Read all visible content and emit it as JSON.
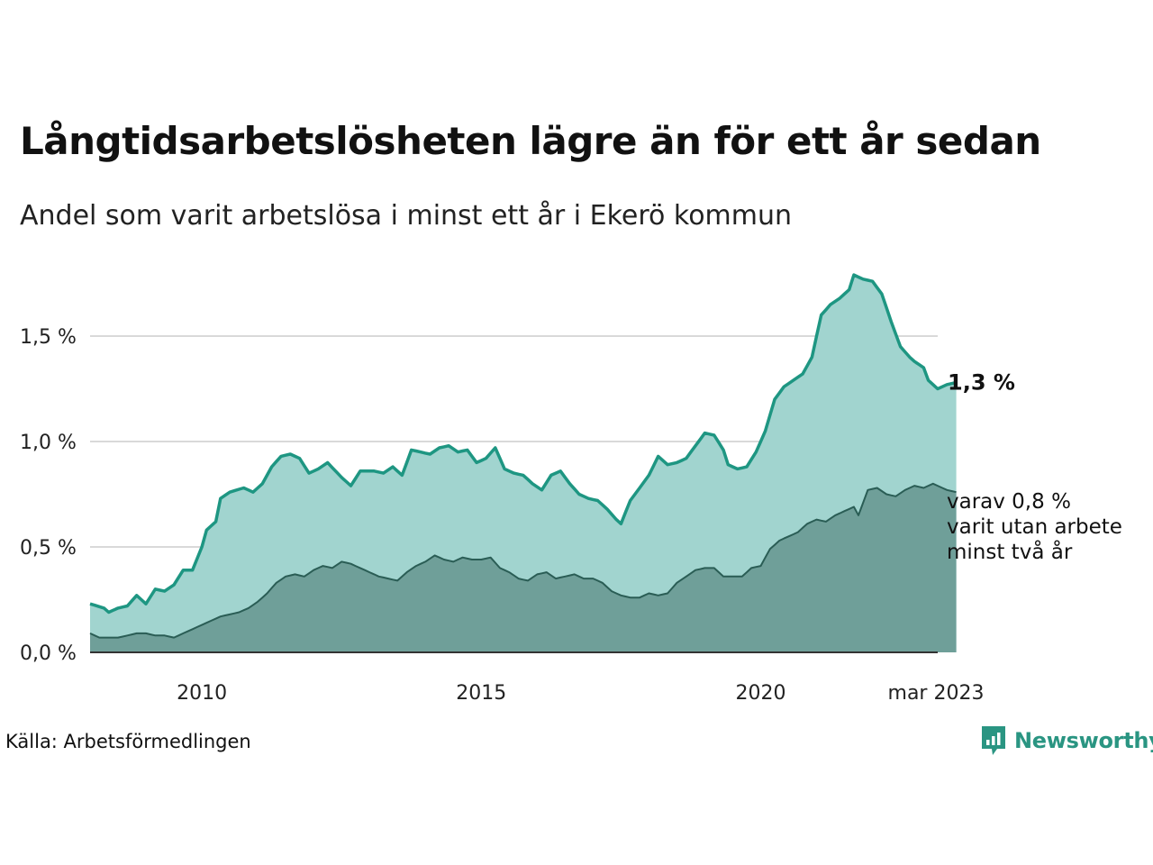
{
  "title": "Långtidsarbetslösheten lägre än för ett år sedan",
  "subtitle": "Andel som varit arbetslösa i minst ett år i Ekerö kommun",
  "source": "Källa: Arbetsförmedlingen",
  "brand": {
    "name": "Newsworthy",
    "icon": "newsworthy-logo-icon",
    "color": "#2a9582"
  },
  "chart_data": {
    "type": "area",
    "start": {
      "year": 2008,
      "month": 1
    },
    "end_label": "mar 2023",
    "ylim": [
      0,
      1.8
    ],
    "grid": true,
    "y_ticks": [
      {
        "value": 0.0,
        "label": "0,0 %"
      },
      {
        "value": 0.5,
        "label": "0,5 %"
      },
      {
        "value": 1.0,
        "label": "1,0 %"
      },
      {
        "value": 1.5,
        "label": "1,5 %"
      }
    ],
    "x_ticks": [
      {
        "year": 2010,
        "label": "2010"
      },
      {
        "year": 2015,
        "label": "2015"
      },
      {
        "year": 2020,
        "label": "2020"
      }
    ],
    "end_value_label": "1,3 %",
    "annotation_lines": [
      "varav 0,8 %",
      "varit utan arbete",
      "minst två år"
    ],
    "series": [
      {
        "key": "minst_ett_ar",
        "color": "#1e9682",
        "fill": "#a1d4cf",
        "keyframes": [
          [
            "2008-01",
            0.23
          ],
          [
            "2008-04",
            0.21
          ],
          [
            "2008-05",
            0.19
          ],
          [
            "2008-07",
            0.21
          ],
          [
            "2008-09",
            0.22
          ],
          [
            "2008-11",
            0.27
          ],
          [
            "2009-01",
            0.23
          ],
          [
            "2009-03",
            0.3
          ],
          [
            "2009-05",
            0.29
          ],
          [
            "2009-07",
            0.32
          ],
          [
            "2009-09",
            0.39
          ],
          [
            "2009-11",
            0.39
          ],
          [
            "2010-01",
            0.5
          ],
          [
            "2010-02",
            0.58
          ],
          [
            "2010-04",
            0.62
          ],
          [
            "2010-05",
            0.73
          ],
          [
            "2010-07",
            0.76
          ],
          [
            "2010-10",
            0.78
          ],
          [
            "2010-12",
            0.76
          ],
          [
            "2011-02",
            0.8
          ],
          [
            "2011-04",
            0.88
          ],
          [
            "2011-06",
            0.93
          ],
          [
            "2011-08",
            0.94
          ],
          [
            "2011-10",
            0.92
          ],
          [
            "2011-12",
            0.85
          ],
          [
            "2012-02",
            0.87
          ],
          [
            "2012-04",
            0.9
          ],
          [
            "2012-07",
            0.83
          ],
          [
            "2012-09",
            0.79
          ],
          [
            "2012-11",
            0.86
          ],
          [
            "2013-02",
            0.86
          ],
          [
            "2013-04",
            0.85
          ],
          [
            "2013-06",
            0.88
          ],
          [
            "2013-08",
            0.84
          ],
          [
            "2013-10",
            0.96
          ],
          [
            "2013-12",
            0.95
          ],
          [
            "2014-02",
            0.94
          ],
          [
            "2014-04",
            0.97
          ],
          [
            "2014-06",
            0.98
          ],
          [
            "2014-08",
            0.95
          ],
          [
            "2014-10",
            0.96
          ],
          [
            "2014-12",
            0.9
          ],
          [
            "2015-02",
            0.92
          ],
          [
            "2015-04",
            0.97
          ],
          [
            "2015-06",
            0.87
          ],
          [
            "2015-08",
            0.85
          ],
          [
            "2015-10",
            0.84
          ],
          [
            "2015-12",
            0.8
          ],
          [
            "2016-02",
            0.77
          ],
          [
            "2016-04",
            0.84
          ],
          [
            "2016-06",
            0.86
          ],
          [
            "2016-08",
            0.8
          ],
          [
            "2016-10",
            0.75
          ],
          [
            "2016-12",
            0.73
          ],
          [
            "2017-02",
            0.72
          ],
          [
            "2017-04",
            0.68
          ],
          [
            "2017-06",
            0.63
          ],
          [
            "2017-07",
            0.61
          ],
          [
            "2017-09",
            0.72
          ],
          [
            "2017-11",
            0.78
          ],
          [
            "2018-01",
            0.84
          ],
          [
            "2018-03",
            0.93
          ],
          [
            "2018-05",
            0.89
          ],
          [
            "2018-07",
            0.9
          ],
          [
            "2018-09",
            0.92
          ],
          [
            "2018-11",
            0.98
          ],
          [
            "2019-01",
            1.04
          ],
          [
            "2019-03",
            1.03
          ],
          [
            "2019-05",
            0.96
          ],
          [
            "2019-06",
            0.89
          ],
          [
            "2019-08",
            0.87
          ],
          [
            "2019-10",
            0.88
          ],
          [
            "2019-12",
            0.95
          ],
          [
            "2020-02",
            1.05
          ],
          [
            "2020-04",
            1.2
          ],
          [
            "2020-06",
            1.26
          ],
          [
            "2020-08",
            1.29
          ],
          [
            "2020-10",
            1.32
          ],
          [
            "2020-12",
            1.4
          ],
          [
            "2021-02",
            1.6
          ],
          [
            "2021-04",
            1.65
          ],
          [
            "2021-06",
            1.68
          ],
          [
            "2021-08",
            1.72
          ],
          [
            "2021-09",
            1.79
          ],
          [
            "2021-11",
            1.77
          ],
          [
            "2022-01",
            1.76
          ],
          [
            "2022-03",
            1.7
          ],
          [
            "2022-05",
            1.57
          ],
          [
            "2022-07",
            1.45
          ],
          [
            "2022-09",
            1.4
          ],
          [
            "2022-10",
            1.38
          ],
          [
            "2022-12",
            1.35
          ],
          [
            "2023-01",
            1.29
          ],
          [
            "2023-03",
            1.25
          ],
          [
            "2023-05",
            1.27
          ],
          [
            "2023-07",
            1.28
          ]
        ]
      },
      {
        "key": "minst_tva_ar",
        "color": "#2a5d55",
        "fill": "#6f9f99",
        "keyframes": [
          [
            "2008-01",
            0.09
          ],
          [
            "2008-03",
            0.07
          ],
          [
            "2008-07",
            0.07
          ],
          [
            "2008-09",
            0.08
          ],
          [
            "2008-11",
            0.09
          ],
          [
            "2009-01",
            0.09
          ],
          [
            "2009-03",
            0.08
          ],
          [
            "2009-05",
            0.08
          ],
          [
            "2009-07",
            0.07
          ],
          [
            "2009-09",
            0.09
          ],
          [
            "2009-11",
            0.11
          ],
          [
            "2010-01",
            0.13
          ],
          [
            "2010-03",
            0.15
          ],
          [
            "2010-05",
            0.17
          ],
          [
            "2010-07",
            0.18
          ],
          [
            "2010-09",
            0.19
          ],
          [
            "2010-11",
            0.21
          ],
          [
            "2011-01",
            0.24
          ],
          [
            "2011-03",
            0.28
          ],
          [
            "2011-05",
            0.33
          ],
          [
            "2011-07",
            0.36
          ],
          [
            "2011-09",
            0.37
          ],
          [
            "2011-11",
            0.36
          ],
          [
            "2012-01",
            0.39
          ],
          [
            "2012-03",
            0.41
          ],
          [
            "2012-05",
            0.4
          ],
          [
            "2012-07",
            0.43
          ],
          [
            "2012-09",
            0.42
          ],
          [
            "2012-11",
            0.4
          ],
          [
            "2013-01",
            0.38
          ],
          [
            "2013-03",
            0.36
          ],
          [
            "2013-05",
            0.35
          ],
          [
            "2013-07",
            0.34
          ],
          [
            "2013-09",
            0.38
          ],
          [
            "2013-11",
            0.41
          ],
          [
            "2014-01",
            0.43
          ],
          [
            "2014-03",
            0.46
          ],
          [
            "2014-05",
            0.44
          ],
          [
            "2014-07",
            0.43
          ],
          [
            "2014-09",
            0.45
          ],
          [
            "2014-11",
            0.44
          ],
          [
            "2015-01",
            0.44
          ],
          [
            "2015-03",
            0.45
          ],
          [
            "2015-05",
            0.4
          ],
          [
            "2015-07",
            0.38
          ],
          [
            "2015-09",
            0.35
          ],
          [
            "2015-11",
            0.34
          ],
          [
            "2016-01",
            0.37
          ],
          [
            "2016-03",
            0.38
          ],
          [
            "2016-05",
            0.35
          ],
          [
            "2016-07",
            0.36
          ],
          [
            "2016-09",
            0.37
          ],
          [
            "2016-11",
            0.35
          ],
          [
            "2017-01",
            0.35
          ],
          [
            "2017-03",
            0.33
          ],
          [
            "2017-05",
            0.29
          ],
          [
            "2017-07",
            0.27
          ],
          [
            "2017-09",
            0.26
          ],
          [
            "2017-11",
            0.26
          ],
          [
            "2018-01",
            0.28
          ],
          [
            "2018-03",
            0.27
          ],
          [
            "2018-05",
            0.28
          ],
          [
            "2018-07",
            0.33
          ],
          [
            "2018-09",
            0.36
          ],
          [
            "2018-11",
            0.39
          ],
          [
            "2019-01",
            0.4
          ],
          [
            "2019-03",
            0.4
          ],
          [
            "2019-05",
            0.36
          ],
          [
            "2019-07",
            0.36
          ],
          [
            "2019-09",
            0.36
          ],
          [
            "2019-11",
            0.4
          ],
          [
            "2020-01",
            0.41
          ],
          [
            "2020-03",
            0.49
          ],
          [
            "2020-05",
            0.53
          ],
          [
            "2020-07",
            0.55
          ],
          [
            "2020-09",
            0.57
          ],
          [
            "2020-11",
            0.61
          ],
          [
            "2021-01",
            0.63
          ],
          [
            "2021-03",
            0.62
          ],
          [
            "2021-05",
            0.65
          ],
          [
            "2021-07",
            0.67
          ],
          [
            "2021-09",
            0.69
          ],
          [
            "2021-10",
            0.65
          ],
          [
            "2021-12",
            0.77
          ],
          [
            "2022-02",
            0.78
          ],
          [
            "2022-04",
            0.75
          ],
          [
            "2022-06",
            0.74
          ],
          [
            "2022-08",
            0.77
          ],
          [
            "2022-10",
            0.79
          ],
          [
            "2022-12",
            0.78
          ],
          [
            "2023-02",
            0.8
          ],
          [
            "2023-04",
            0.78
          ],
          [
            "2023-05",
            0.77
          ],
          [
            "2023-07",
            0.76
          ]
        ]
      }
    ]
  }
}
